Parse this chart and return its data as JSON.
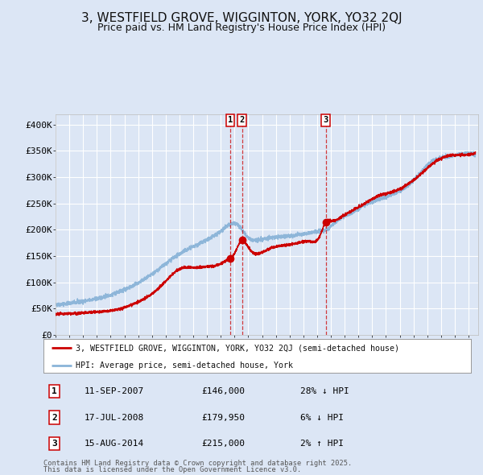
{
  "title": "3, WESTFIELD GROVE, WIGGINTON, YORK, YO32 2QJ",
  "subtitle": "Price paid vs. HM Land Registry's House Price Index (HPI)",
  "title_fontsize": 11,
  "subtitle_fontsize": 9,
  "bg_color": "#dce6f5",
  "plot_bg_color": "#dce6f5",
  "grid_color": "#ffffff",
  "sale_color": "#cc0000",
  "hpi_color": "#8ab4d8",
  "vline_color": "#cc0000",
  "ylim": [
    0,
    420000
  ],
  "yticks": [
    0,
    50000,
    100000,
    150000,
    200000,
    250000,
    300000,
    350000,
    400000
  ],
  "ytick_labels": [
    "£0",
    "£50K",
    "£100K",
    "£150K",
    "£200K",
    "£250K",
    "£300K",
    "£350K",
    "£400K"
  ],
  "transactions": [
    {
      "num": 1,
      "date": "11-SEP-2007",
      "price": 146000,
      "price_str": "£146,000",
      "pct": "28%",
      "dir": "↓",
      "date_x": 2007.69
    },
    {
      "num": 2,
      "date": "17-JUL-2008",
      "price": 179950,
      "price_str": "£179,950",
      "pct": "6%",
      "dir": "↓",
      "date_x": 2008.54
    },
    {
      "num": 3,
      "date": "15-AUG-2014",
      "price": 215000,
      "price_str": "£215,000",
      "pct": "2%",
      "dir": "↑",
      "date_x": 2014.62
    }
  ],
  "legend_sale_label": "3, WESTFIELD GROVE, WIGGINTON, YORK, YO32 2QJ (semi-detached house)",
  "legend_hpi_label": "HPI: Average price, semi-detached house, York",
  "footnote1": "Contains HM Land Registry data © Crown copyright and database right 2025.",
  "footnote2": "This data is licensed under the Open Government Licence v3.0.",
  "xlim_start": 1995.0,
  "xlim_end": 2025.7
}
